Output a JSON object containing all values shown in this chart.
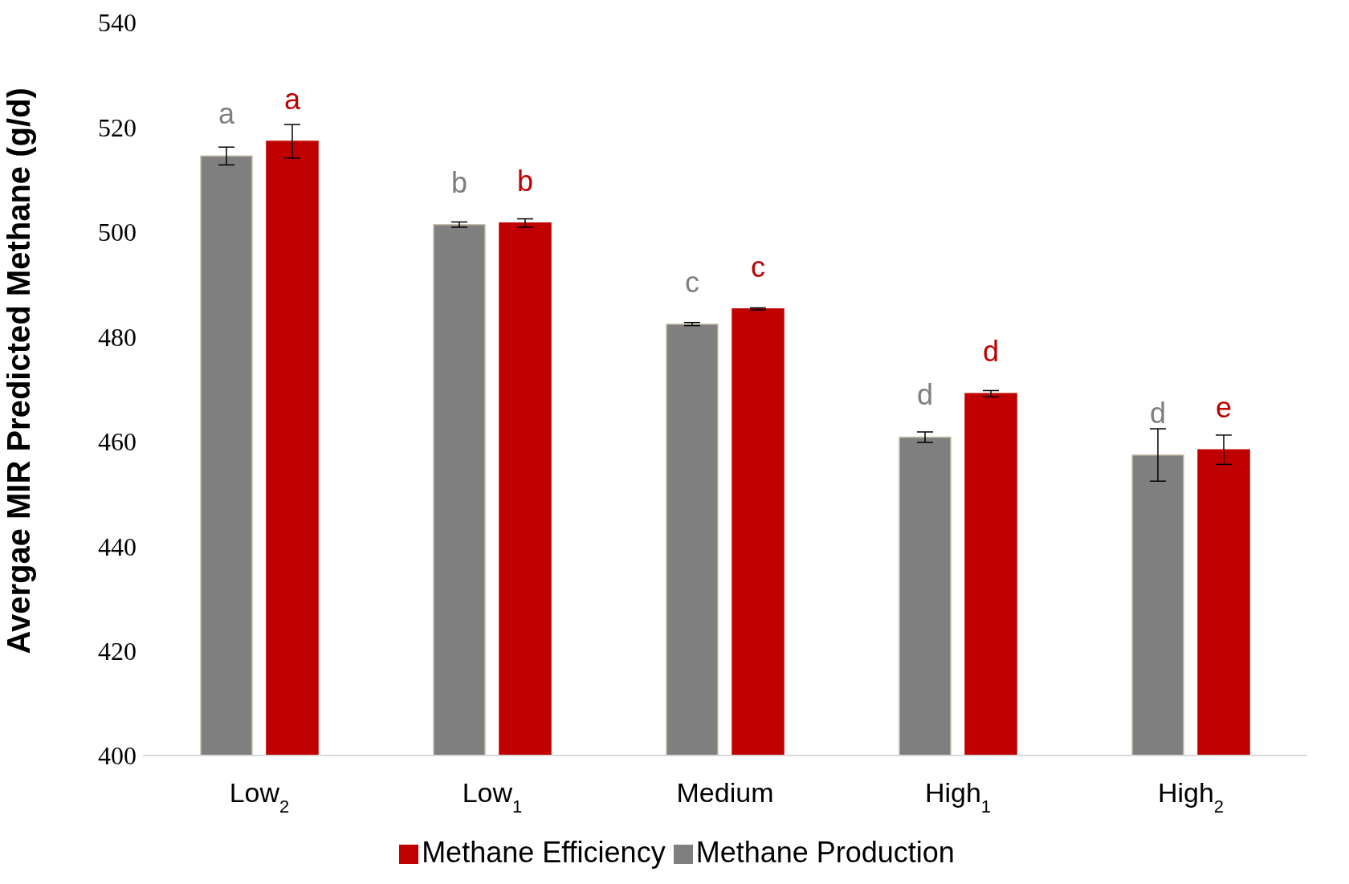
{
  "chart_data": {
    "type": "bar",
    "ylabel": "Avergae MIR Predicted Methane (g/d)",
    "categories": [
      "Low$_{2}$",
      "Low$_{1}$",
      "Medium",
      "High$_{1}$",
      "High$_{2}$"
    ],
    "series": [
      {
        "name": "Methane Production",
        "color": "#7f7f7f",
        "values": [
          514.5,
          501.4,
          482.4,
          460.8,
          457.4
        ],
        "errors": [
          1.7,
          0.5,
          0.3,
          1.0,
          5.0
        ],
        "value_labels": [
          "a",
          "b",
          "c",
          "d",
          "d"
        ]
      },
      {
        "name": "Methane Efficiency",
        "color": "#c00000",
        "values": [
          517.3,
          501.7,
          485.3,
          469.1,
          458.4
        ],
        "errors": [
          3.2,
          0.8,
          0.2,
          0.6,
          2.8
        ],
        "value_labels": [
          "a",
          "b",
          "c",
          "d",
          "e"
        ]
      }
    ],
    "ylim": [
      400,
      540
    ],
    "yticks": [
      400,
      420,
      440,
      460,
      480,
      500,
      520,
      540
    ],
    "grid": false,
    "legend": "bottom"
  }
}
